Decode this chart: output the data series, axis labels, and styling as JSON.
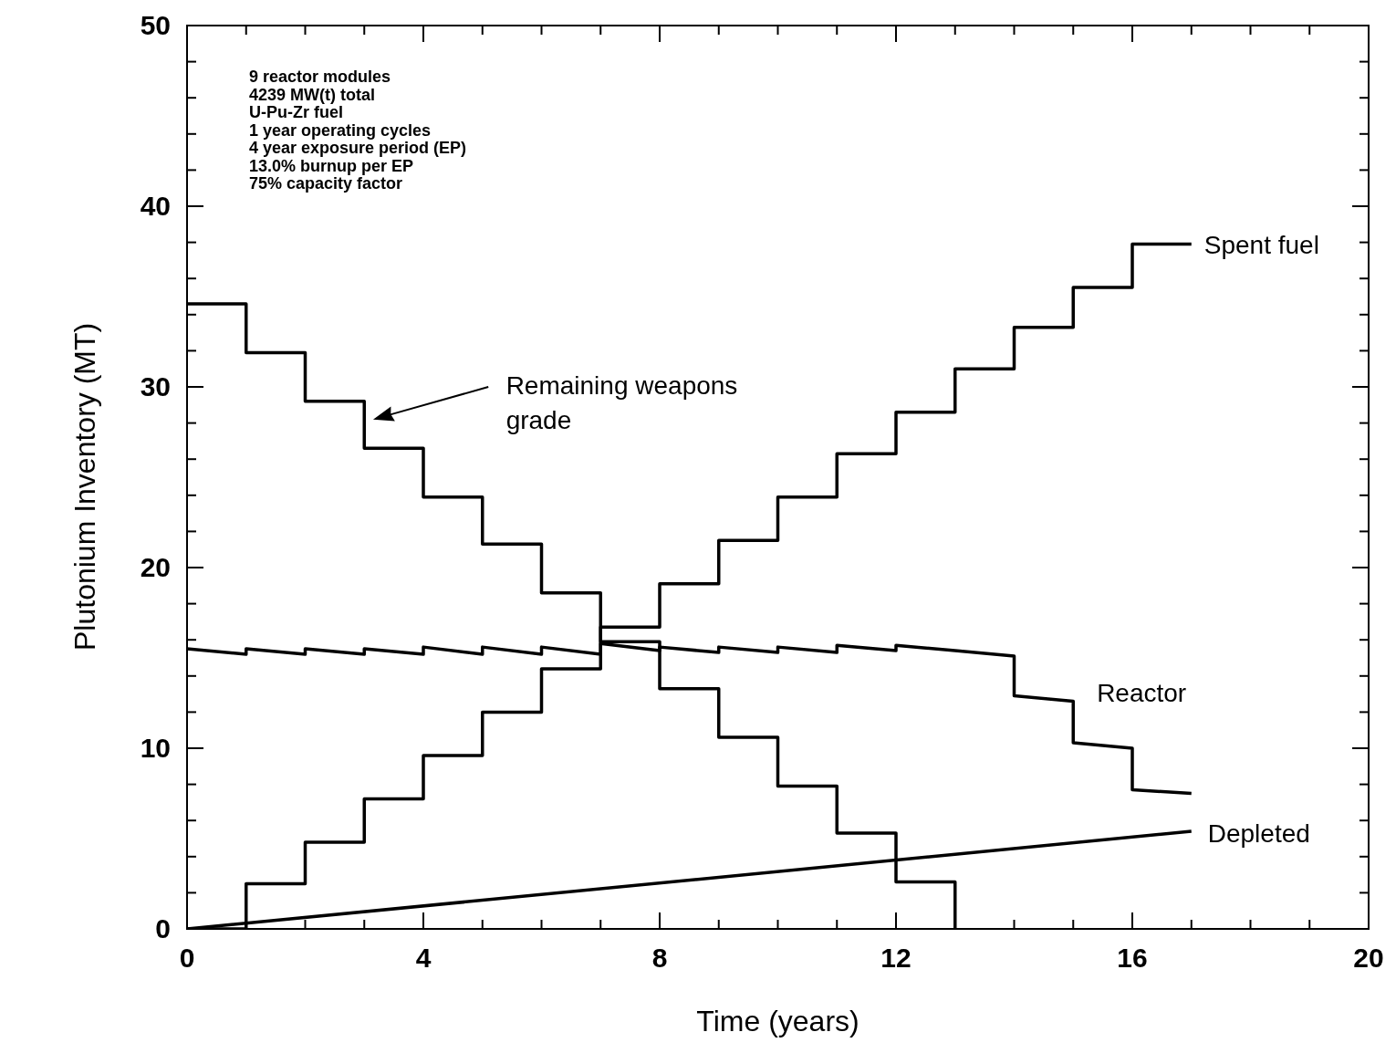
{
  "chart_data": {
    "type": "line",
    "xlabel": "Time (years)",
    "ylabel": "Plutonium Inventory (MT)",
    "xlim": [
      0,
      20
    ],
    "ylim": [
      0,
      50
    ],
    "legend": "right",
    "xticks": [
      0,
      {
        "value": 1,
        "label": null
      },
      {
        "value": 2,
        "label": null
      },
      {
        "value": 3,
        "label": null
      },
      4,
      {
        "value": 5,
        "label": null
      },
      {
        "value": 6,
        "label": null
      },
      {
        "value": 7,
        "label": null
      },
      8,
      {
        "value": 9,
        "label": null
      },
      {
        "value": 10,
        "label": null
      },
      {
        "value": 11,
        "label": null
      },
      12,
      {
        "value": 13,
        "label": null
      },
      {
        "value": 14,
        "label": null
      },
      {
        "value": 15,
        "label": null
      },
      16,
      {
        "value": 17,
        "label": null
      },
      {
        "value": 18,
        "label": null
      },
      {
        "value": 19,
        "label": null
      },
      20
    ],
    "yticks": [
      0,
      {
        "value": 2,
        "label": null
      },
      {
        "value": 4,
        "label": null
      },
      {
        "value": 6,
        "label": null
      },
      {
        "value": 8,
        "label": null
      },
      10,
      {
        "value": 12,
        "label": null
      },
      {
        "value": 14,
        "label": null
      },
      {
        "value": 16,
        "label": null
      },
      {
        "value": 18,
        "label": null
      },
      20,
      {
        "value": 22,
        "label": null
      },
      {
        "value": 24,
        "label": null
      },
      {
        "value": 26,
        "label": null
      },
      {
        "value": 28,
        "label": null
      },
      30,
      {
        "value": 32,
        "label": null
      },
      {
        "value": 34,
        "label": null
      },
      {
        "value": 36,
        "label": null
      },
      {
        "value": 38,
        "label": null
      },
      40,
      {
        "value": 42,
        "label": null
      },
      {
        "value": 44,
        "label": null
      },
      {
        "value": 46,
        "label": null
      },
      {
        "value": 48,
        "label": null
      },
      50
    ],
    "annotations": [
      "9 reactor modules",
      "4239 MW(t) total",
      "U-Pu-Zr fuel",
      "1 year operating cycles",
      "4 year exposure period (EP)",
      "13.0% burnup per EP",
      "75% capacity factor"
    ],
    "series": [
      {
        "name": "Remaining weapons grade",
        "type": "step",
        "color": "#000000",
        "x": [
          0,
          1,
          2,
          3,
          4,
          5,
          6,
          7,
          8,
          9,
          10,
          11,
          12,
          13
        ],
        "values": [
          34.6,
          31.9,
          29.2,
          26.6,
          23.9,
          21.3,
          18.6,
          15.9,
          13.3,
          10.6,
          7.9,
          5.3,
          2.6,
          0
        ]
      },
      {
        "name": "Spent fuel",
        "type": "step",
        "color": "#000000",
        "x": [
          0,
          1,
          2,
          3,
          4,
          5,
          6,
          7,
          8,
          9,
          10,
          11,
          12,
          13,
          14,
          15,
          16,
          17
        ],
        "values": [
          0,
          2.5,
          4.8,
          7.2,
          9.6,
          12.0,
          14.4,
          16.7,
          19.1,
          21.5,
          23.9,
          26.3,
          28.6,
          31.0,
          33.3,
          35.5,
          37.9,
          37.9
        ]
      },
      {
        "name": "Reactor",
        "color": "#000000",
        "x": [
          0,
          1,
          1,
          2,
          2,
          3,
          3,
          4,
          4,
          5,
          5,
          6,
          6,
          7,
          7,
          8,
          8,
          9,
          9,
          10,
          10,
          11,
          11,
          12,
          12,
          13,
          14,
          14,
          15,
          15,
          16,
          16,
          17
        ],
        "values": [
          15.5,
          15.2,
          15.5,
          15.2,
          15.5,
          15.2,
          15.5,
          15.2,
          15.6,
          15.2,
          15.6,
          15.2,
          15.6,
          15.2,
          15.8,
          15.4,
          15.6,
          15.3,
          15.6,
          15.3,
          15.6,
          15.3,
          15.7,
          15.4,
          15.7,
          15.4,
          15.1,
          12.9,
          12.6,
          10.3,
          10.0,
          7.7,
          7.5
        ]
      },
      {
        "name": "Depleted",
        "color": "#000000",
        "x": [
          0,
          17
        ],
        "values": [
          0,
          5.4
        ]
      }
    ]
  }
}
